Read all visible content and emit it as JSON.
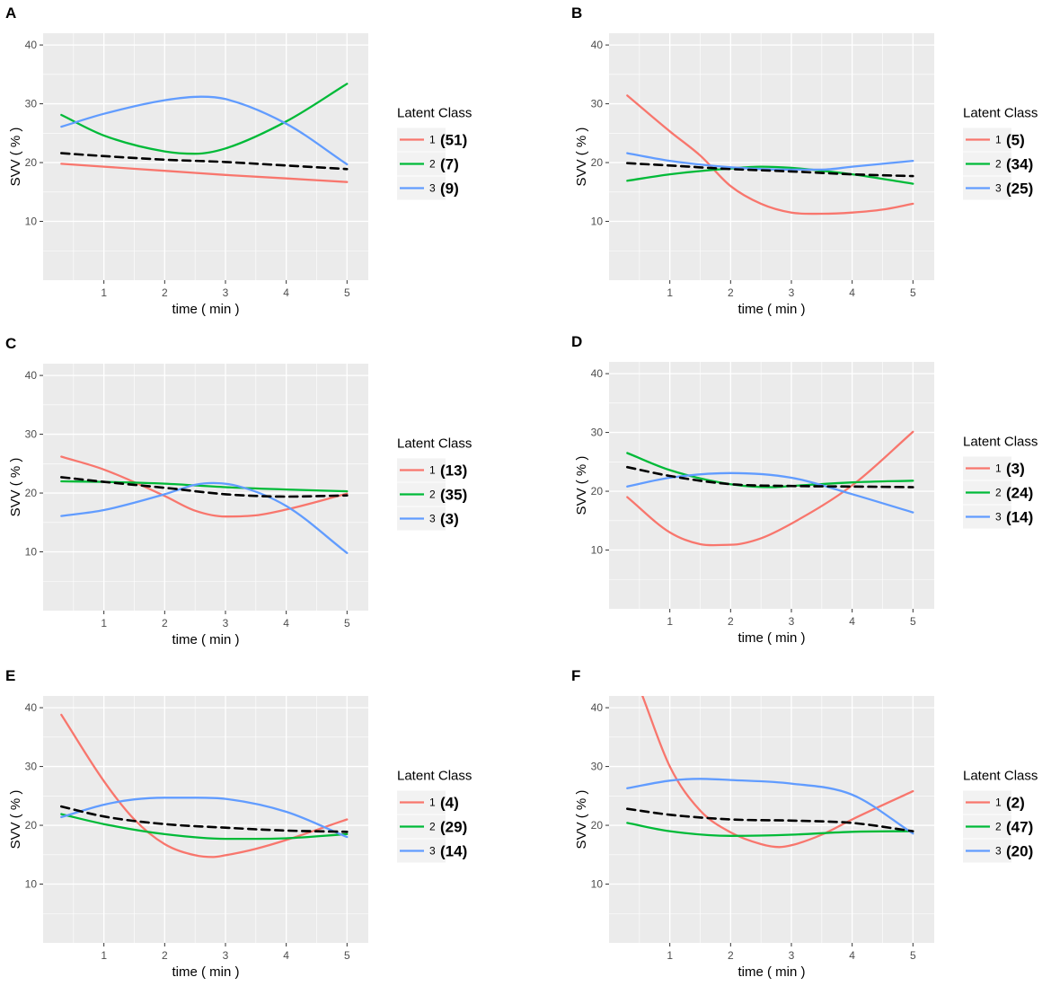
{
  "chart_data": [
    {
      "panel": "A",
      "type": "line",
      "xlabel": "time ( min )",
      "ylabel": "SVV ( % )",
      "xlim": [
        0,
        5.35
      ],
      "ylim": [
        0,
        42
      ],
      "xticks": [
        "1",
        "2",
        "3",
        "4",
        "5"
      ],
      "yticks": [
        "10",
        "20",
        "30",
        "40"
      ],
      "legend_title": "Latent Class",
      "series": [
        {
          "name": "1",
          "count": "(51)",
          "x": [
            0.3,
            1,
            2,
            3,
            4,
            5
          ],
          "y": [
            19.8,
            19.3,
            18.6,
            17.9,
            17.3,
            16.7
          ]
        },
        {
          "name": "2",
          "count": "(7)",
          "x": [
            0.3,
            1,
            2,
            2.5,
            3,
            4,
            5
          ],
          "y": [
            28.1,
            24.6,
            21.9,
            21.5,
            22.4,
            27.0,
            33.4
          ]
        },
        {
          "name": "3",
          "count": "(9)",
          "x": [
            0.3,
            1,
            2,
            2.6,
            3,
            4,
            5
          ],
          "y": [
            26.1,
            28.3,
            30.6,
            31.2,
            30.8,
            26.6,
            19.7
          ]
        },
        {
          "name": "mean",
          "count": "",
          "x": [
            0.3,
            1,
            2,
            3,
            4,
            5
          ],
          "y": [
            21.6,
            21.1,
            20.5,
            20.1,
            19.5,
            18.9
          ]
        }
      ]
    },
    {
      "panel": "B",
      "type": "line",
      "xlabel": "time ( min )",
      "ylabel": "SVV ( % )",
      "xlim": [
        0,
        5.35
      ],
      "ylim": [
        0,
        42
      ],
      "xticks": [
        "1",
        "2",
        "3",
        "4",
        "5"
      ],
      "yticks": [
        "10",
        "20",
        "30",
        "40"
      ],
      "legend_title": "Latent Class",
      "series": [
        {
          "name": "1",
          "count": "(5)",
          "x": [
            0.3,
            1,
            1.5,
            2,
            2.5,
            3,
            3.5,
            4,
            4.5,
            5
          ],
          "y": [
            31.4,
            25.3,
            21.2,
            16.0,
            13.0,
            11.5,
            11.3,
            11.5,
            12.0,
            13.0
          ]
        },
        {
          "name": "2",
          "count": "(34)",
          "x": [
            0.3,
            1,
            2,
            2.5,
            3,
            4,
            5
          ],
          "y": [
            16.9,
            18.0,
            19.0,
            19.3,
            19.1,
            18.0,
            16.4
          ]
        },
        {
          "name": "3",
          "count": "(25)",
          "x": [
            0.3,
            1,
            2,
            3,
            3.5,
            4,
            5
          ],
          "y": [
            21.6,
            20.3,
            19.2,
            18.8,
            18.8,
            19.3,
            20.3
          ]
        },
        {
          "name": "mean",
          "count": "",
          "x": [
            0.3,
            1,
            2,
            3,
            4,
            5
          ],
          "y": [
            19.9,
            19.5,
            18.9,
            18.5,
            18.0,
            17.7
          ]
        }
      ]
    },
    {
      "panel": "C",
      "type": "line",
      "xlabel": "time ( min )",
      "ylabel": "SVV ( % )",
      "xlim": [
        0,
        5.35
      ],
      "ylim": [
        0,
        42
      ],
      "xticks": [
        "1",
        "2",
        "3",
        "4",
        "5"
      ],
      "yticks": [
        "10",
        "20",
        "30",
        "40"
      ],
      "legend_title": "Latent Class",
      "series": [
        {
          "name": "1",
          "count": "(13)",
          "x": [
            0.3,
            1,
            2,
            2.5,
            3,
            3.5,
            4,
            5
          ],
          "y": [
            26.2,
            24.0,
            19.5,
            17.0,
            16.0,
            16.2,
            17.2,
            19.9
          ]
        },
        {
          "name": "2",
          "count": "(35)",
          "x": [
            0.3,
            1,
            2,
            3,
            4,
            5
          ],
          "y": [
            22.0,
            21.9,
            21.6,
            21.0,
            20.6,
            20.3
          ]
        },
        {
          "name": "3",
          "count": "(3)",
          "x": [
            0.3,
            1,
            2,
            2.5,
            2.8,
            3.2,
            4,
            5
          ],
          "y": [
            16.1,
            17.1,
            19.8,
            21.4,
            21.7,
            21.2,
            17.8,
            9.8
          ]
        },
        {
          "name": "mean",
          "count": "",
          "x": [
            0.3,
            1,
            2,
            3,
            4,
            5
          ],
          "y": [
            22.7,
            21.9,
            20.9,
            19.8,
            19.4,
            19.6
          ]
        }
      ]
    },
    {
      "panel": "D",
      "type": "line",
      "xlabel": "time ( min )",
      "ylabel": "SVV ( % )",
      "xlim": [
        0,
        5.35
      ],
      "ylim": [
        0,
        42
      ],
      "xticks": [
        "1",
        "2",
        "3",
        "4",
        "5"
      ],
      "yticks": [
        "10",
        "20",
        "30",
        "40"
      ],
      "legend_title": "Latent Class",
      "series": [
        {
          "name": "1",
          "count": "(3)",
          "x": [
            0.3,
            1,
            1.5,
            2,
            2.5,
            3,
            4,
            5
          ],
          "y": [
            19.0,
            13.0,
            11.0,
            10.9,
            12.0,
            14.5,
            21.0,
            30.1
          ]
        },
        {
          "name": "2",
          "count": "(24)",
          "x": [
            0.3,
            1,
            2,
            2.7,
            3,
            4,
            5
          ],
          "y": [
            26.5,
            23.6,
            21.2,
            20.7,
            20.9,
            21.5,
            21.8
          ]
        },
        {
          "name": "3",
          "count": "(14)",
          "x": [
            0.3,
            1,
            2,
            3,
            4,
            5
          ],
          "y": [
            20.8,
            22.3,
            23.1,
            22.3,
            19.5,
            16.4
          ]
        },
        {
          "name": "mean",
          "count": "",
          "x": [
            0.3,
            1,
            2,
            3,
            4,
            5
          ],
          "y": [
            24.1,
            22.6,
            21.2,
            20.9,
            20.8,
            20.7
          ]
        }
      ]
    },
    {
      "panel": "E",
      "type": "line",
      "xlabel": "time ( min )",
      "ylabel": "SVV ( % )",
      "xlim": [
        0,
        5.35
      ],
      "ylim": [
        0,
        42
      ],
      "xticks": [
        "1",
        "2",
        "3",
        "4",
        "5"
      ],
      "yticks": [
        "10",
        "20",
        "30",
        "40"
      ],
      "legend_title": "Latent Class",
      "series": [
        {
          "name": "1",
          "count": "(4)",
          "x": [
            0.3,
            1,
            1.5,
            2,
            2.5,
            2.8,
            3,
            3.5,
            4,
            5
          ],
          "y": [
            38.8,
            27.5,
            21.0,
            16.8,
            14.9,
            14.6,
            14.9,
            16.0,
            17.5,
            21.0
          ]
        },
        {
          "name": "2",
          "count": "(29)",
          "x": [
            0.3,
            1,
            2,
            3,
            3.5,
            4,
            5
          ],
          "y": [
            21.9,
            20.2,
            18.5,
            17.7,
            17.7,
            17.8,
            18.5
          ]
        },
        {
          "name": "3",
          "count": "(14)",
          "x": [
            0.3,
            1,
            1.5,
            2,
            2.5,
            3,
            4,
            5
          ],
          "y": [
            21.4,
            23.5,
            24.4,
            24.7,
            24.7,
            24.5,
            22.3,
            18.0
          ]
        },
        {
          "name": "mean",
          "count": "",
          "x": [
            0.3,
            1,
            2,
            3,
            4,
            5
          ],
          "y": [
            23.2,
            21.5,
            20.2,
            19.6,
            19.1,
            18.9
          ]
        }
      ]
    },
    {
      "panel": "F",
      "type": "line",
      "xlabel": "time ( min )",
      "ylabel": "SVV ( % )",
      "xlim": [
        0,
        5.35
      ],
      "ylim": [
        0,
        42
      ],
      "xticks": [
        "1",
        "2",
        "3",
        "4",
        "5"
      ],
      "yticks": [
        "10",
        "20",
        "30",
        "40"
      ],
      "legend_title": "Latent Class",
      "series": [
        {
          "name": "1",
          "count": "(2)",
          "x": [
            0.55,
            1,
            1.5,
            2,
            2.5,
            2.8,
            3,
            3.5,
            4,
            5
          ],
          "y": [
            42,
            30.0,
            22.5,
            18.8,
            16.8,
            16.3,
            16.6,
            18.4,
            21.0,
            25.8
          ]
        },
        {
          "name": "2",
          "count": "(47)",
          "x": [
            0.3,
            1,
            2,
            3,
            4,
            5
          ],
          "y": [
            20.4,
            19.0,
            18.2,
            18.4,
            18.9,
            19.0
          ]
        },
        {
          "name": "3",
          "count": "(20)",
          "x": [
            0.3,
            1,
            1.5,
            2,
            3,
            4,
            5
          ],
          "y": [
            26.3,
            27.6,
            27.9,
            27.7,
            27.1,
            25.2,
            18.6
          ]
        },
        {
          "name": "mean",
          "count": "",
          "x": [
            0.3,
            1,
            2,
            3,
            4,
            5
          ],
          "y": [
            22.8,
            21.8,
            21.0,
            20.8,
            20.4,
            19.0
          ]
        }
      ]
    }
  ],
  "colors": {
    "class1": "#f8766d",
    "class2": "#00ba38",
    "class3": "#619cff",
    "mean": "#000000",
    "panel_bg": "#ebebeb",
    "grid": "#ffffff",
    "legend_key_bg": "#f2f2f2"
  }
}
